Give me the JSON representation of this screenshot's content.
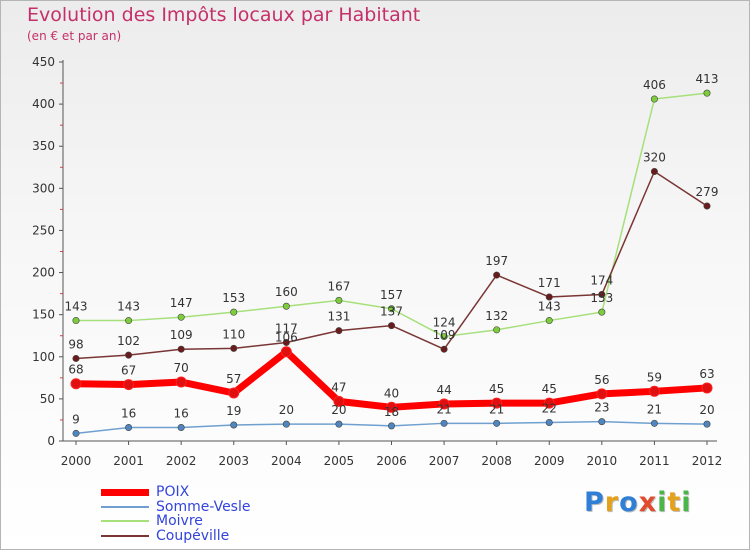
{
  "title": "Evolution des Impôts locaux par Habitant",
  "subtitle": "(en € et par an)",
  "logo_text": "Proxiti",
  "logo_letters": [
    {
      "ch": "P",
      "color": "#2f7fd6"
    },
    {
      "ch": "r",
      "color": "#e4a11b"
    },
    {
      "ch": "o",
      "color": "#2f7fd6"
    },
    {
      "ch": "x",
      "color": "#e24b2c"
    },
    {
      "ch": "i",
      "color": "#4bb54b"
    },
    {
      "ch": "t",
      "color": "#e4a11b"
    },
    {
      "ch": "i",
      "color": "#4bb54b"
    }
  ],
  "chart_data": {
    "type": "line",
    "title": "Evolution des Impôts locaux par Habitant",
    "subtitle": "(en € et par an)",
    "x": [
      "2000",
      "2001",
      "2002",
      "2003",
      "2004",
      "2005",
      "2006",
      "2007",
      "2008",
      "2009",
      "2010",
      "2011",
      "2012"
    ],
    "ylim": [
      0,
      450
    ],
    "yticks": [
      0,
      50,
      100,
      150,
      200,
      250,
      300,
      350,
      400,
      450
    ],
    "grid": false,
    "legend_position": "bottom-left",
    "series": [
      {
        "name": "POIX",
        "color": "#ff0000",
        "marker": "#e01010",
        "values": [
          68,
          67,
          70,
          57,
          106,
          47,
          40,
          44,
          45,
          45,
          56,
          59,
          63
        ]
      },
      {
        "name": "Somme-Vesle",
        "color": "#6fa0cf",
        "marker": "#4f86bf",
        "values": [
          9,
          16,
          16,
          19,
          20,
          20,
          18,
          21,
          21,
          22,
          23,
          21,
          20
        ]
      },
      {
        "name": "Moivre",
        "color": "#a6e07a",
        "marker": "#7ccc3c",
        "values": [
          143,
          143,
          147,
          153,
          160,
          167,
          157,
          124,
          132,
          143,
          153,
          406,
          413
        ]
      },
      {
        "name": "Coupéville",
        "color": "#7a3535",
        "marker": "#6a1c1c",
        "values": [
          98,
          102,
          109,
          110,
          117,
          131,
          137,
          109,
          197,
          171,
          174,
          320,
          279
        ]
      }
    ]
  }
}
